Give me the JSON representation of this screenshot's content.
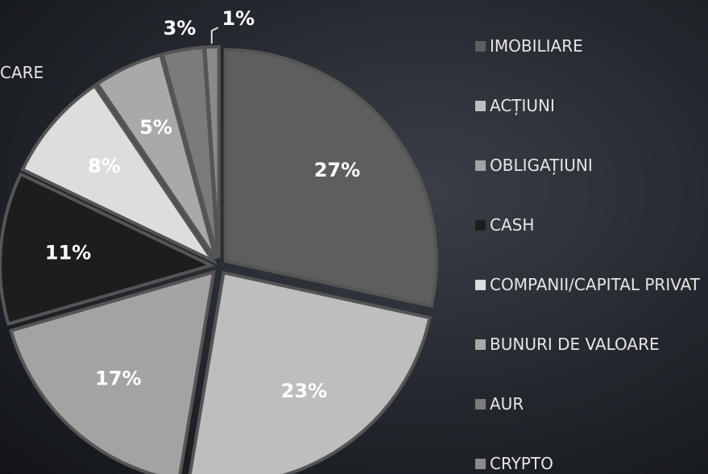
{
  "chart_data": {
    "type": "pie",
    "annotation": "CARE",
    "categories": [
      "IMOBILIARE",
      "ACȚIUNI",
      "OBLIGAȚIUNI",
      "CASH",
      "COMPANII/CAPITAL PRIVAT",
      "BUNURI DE VALOARE",
      "AUR",
      "CRYPTO"
    ],
    "values": [
      27,
      23,
      17,
      11,
      8,
      5,
      3,
      1
    ],
    "value_labels": [
      "27%",
      "23%",
      "17%",
      "11%",
      "8%",
      "5%",
      "3%",
      "1%"
    ],
    "colors": [
      "#5e5e5e",
      "#bebebe",
      "#a3a3a3",
      "#1d1d1d",
      "#dddddd",
      "#a9a9a9",
      "#7b7b7b",
      "#8a8a8a"
    ],
    "legend": "right"
  }
}
